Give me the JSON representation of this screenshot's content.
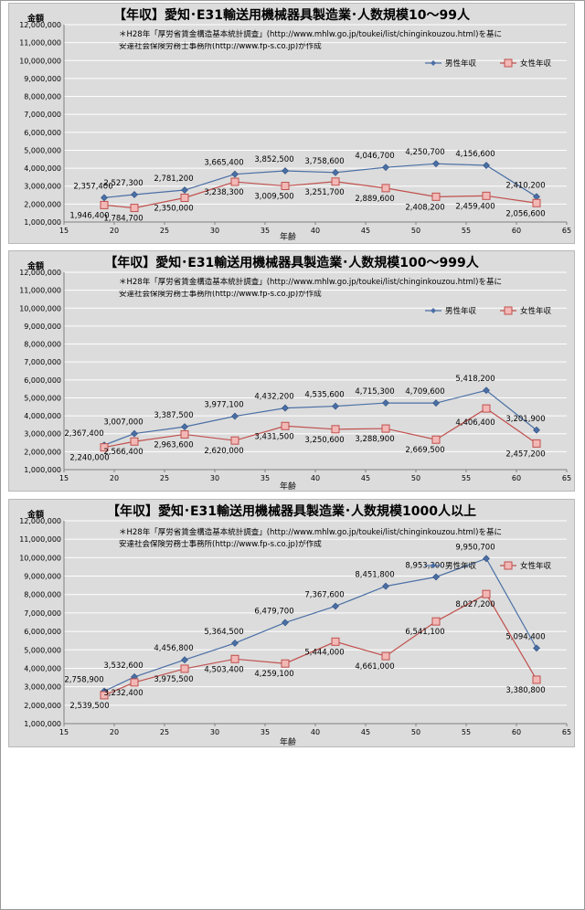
{
  "note_line1": "＊H28年「厚労省賃金構造基本統計調査」(http://www.mhlw.go.jp/toukei/list/chinginkouzou.html)を基に",
  "note_line2": "安達社会保険労務士事務所(http://www.fp-s.co.jp)が作成",
  "colors": {
    "male": "#4a6fa5",
    "female": "#c0504d",
    "female_fill": "#f2b8b6",
    "panel": "#dcdcdc",
    "grid": "#ffffff"
  },
  "chart_data": [
    {
      "type": "line",
      "title": "【年収】愛知･E31輸送用機械器具製造業･人数規模10～99人",
      "xlabel": "年齢",
      "ylabel": "金額",
      "xlim": [
        15,
        65
      ],
      "ylim": [
        1000000,
        12000000
      ],
      "x_ticks": [
        "15",
        "20",
        "25",
        "30",
        "35",
        "40",
        "45",
        "50",
        "55",
        "60",
        "65"
      ],
      "y_ticks": [
        "1,000,000",
        "2,000,000",
        "3,000,000",
        "4,000,000",
        "5,000,000",
        "6,000,000",
        "7,000,000",
        "8,000,000",
        "9,000,000",
        "10,000,000",
        "11,000,000",
        "12,000,000"
      ],
      "legend_position": "top-right",
      "x": [
        19,
        22,
        27,
        32,
        37,
        42,
        47,
        52,
        57,
        62
      ],
      "series": [
        {
          "name": "男性年収",
          "values": [
            2357400,
            2527300,
            2781200,
            3665400,
            3852500,
            3758600,
            4046700,
            4250700,
            4156600,
            2410200
          ],
          "labels": [
            "2,357,400",
            "2,527,300",
            "2,781,200",
            "3,665,400",
            "3,852,500",
            "3,758,600",
            "4,046,700",
            "4,250,700",
            "4,156,600",
            "2,410,200"
          ]
        },
        {
          "name": "女性年収",
          "values": [
            1946400,
            1784700,
            2350000,
            3238300,
            3009500,
            3251700,
            2889600,
            2408200,
            2459400,
            2056600
          ],
          "labels": [
            "1,946,400",
            "1,784,700",
            "2,350,000",
            "3,238,300",
            "3,009,500",
            "3,251,700",
            "2,889,600",
            "2,408,200",
            "2,459,400",
            "2,056,600"
          ]
        }
      ]
    },
    {
      "type": "line",
      "title": "【年収】愛知･E31輸送用機械器具製造業･人数規模100～999人",
      "xlabel": "年齢",
      "ylabel": "金額",
      "xlim": [
        15,
        65
      ],
      "ylim": [
        1000000,
        12000000
      ],
      "x_ticks": [
        "15",
        "20",
        "25",
        "30",
        "35",
        "40",
        "45",
        "50",
        "55",
        "60",
        "65"
      ],
      "y_ticks": [
        "1,000,000",
        "2,000,000",
        "3,000,000",
        "4,000,000",
        "5,000,000",
        "6,000,000",
        "7,000,000",
        "8,000,000",
        "9,000,000",
        "10,000,000",
        "11,000,000",
        "12,000,000"
      ],
      "legend_position": "top-right",
      "x": [
        19,
        22,
        27,
        32,
        37,
        42,
        47,
        52,
        57,
        62
      ],
      "series": [
        {
          "name": "男性年収",
          "values": [
            2367400,
            3007000,
            3387500,
            3977100,
            4432200,
            4535600,
            4715300,
            4709600,
            5418200,
            3201900
          ],
          "labels": [
            "2,367,400",
            "3,007,000",
            "3,387,500",
            "3,977,100",
            "4,432,200",
            "4,535,600",
            "4,715,300",
            "4,709,600",
            "5,418,200",
            "3,201,900"
          ]
        },
        {
          "name": "女性年収",
          "values": [
            2240000,
            2566400,
            2963600,
            2620000,
            3431500,
            3250600,
            3288900,
            2669500,
            4406400,
            2457200
          ],
          "labels": [
            "2,240,000",
            "2,566,400",
            "2,963,600",
            "2,620,000",
            "3,431,500",
            "3,250,600",
            "3,288,900",
            "2,669,500",
            "4,406,400",
            "2,457,200"
          ]
        }
      ]
    },
    {
      "type": "line",
      "title": "【年収】愛知･E31輸送用機械器具製造業･人数規模1000人以上",
      "xlabel": "年齢",
      "ylabel": "金額",
      "xlim": [
        15,
        65
      ],
      "ylim": [
        1000000,
        12000000
      ],
      "x_ticks": [
        "15",
        "20",
        "25",
        "30",
        "35",
        "40",
        "45",
        "50",
        "55",
        "60",
        "65"
      ],
      "y_ticks": [
        "1,000,000",
        "2,000,000",
        "3,000,000",
        "4,000,000",
        "5,000,000",
        "6,000,000",
        "7,000,000",
        "8,000,000",
        "9,000,000",
        "10,000,000",
        "11,000,000",
        "12,000,000"
      ],
      "legend_position": "top-right",
      "x": [
        19,
        22,
        27,
        32,
        37,
        42,
        47,
        52,
        57,
        62
      ],
      "series": [
        {
          "name": "男性年収",
          "values": [
            2758900,
            3532600,
            4456800,
            5364500,
            6479700,
            7367600,
            8451800,
            8953300,
            9950700,
            5094400
          ],
          "labels": [
            "2,758,900",
            "3,532,600",
            "4,456,800",
            "5,364,500",
            "6,479,700",
            "7,367,600",
            "8,451,800",
            "8,953,300",
            "9,950,700",
            "5,094,400"
          ]
        },
        {
          "name": "女性年収",
          "values": [
            2539500,
            3232400,
            3975500,
            4503400,
            4259100,
            5444000,
            4661000,
            6541100,
            8027200,
            3380800
          ],
          "labels": [
            "2,539,500",
            "3,232,400",
            "3,975,500",
            "4,503,400",
            "4,259,100",
            "5,444,000",
            "4,661,000",
            "6,541,100",
            "8,027,200",
            "3,380,800"
          ]
        }
      ]
    }
  ]
}
